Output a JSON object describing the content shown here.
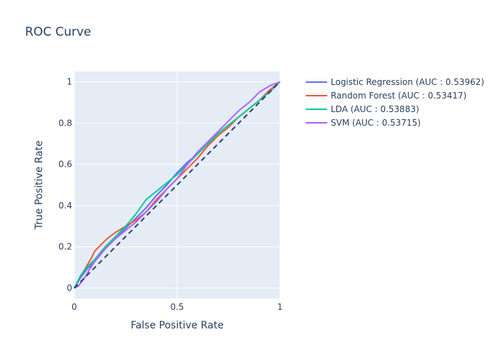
{
  "chart_data": {
    "type": "line",
    "title": "ROC Curve",
    "xlabel": "False Positive Rate",
    "ylabel": "True Positive Rate",
    "xlim": [
      0,
      1
    ],
    "ylim": [
      -0.05,
      1.05
    ],
    "x_ticks": [
      0,
      0.5,
      1
    ],
    "x_tick_labels": [
      "0",
      "0.5",
      "1"
    ],
    "y_ticks": [
      0,
      0.2,
      0.4,
      0.6,
      0.8,
      1
    ],
    "y_tick_labels": [
      "0",
      "0.2",
      "0.4",
      "0.6",
      "0.8",
      "1"
    ],
    "grid": true,
    "legend_position": "right",
    "background_color": "#e5ecf6",
    "series": [
      {
        "name": "Logistic Regression (AUC : 0.53962)",
        "color": "#636efa",
        "x": [
          0,
          0.03,
          0.06,
          0.1,
          0.15,
          0.2,
          0.25,
          0.3,
          0.35,
          0.4,
          0.45,
          0.5,
          0.55,
          0.6,
          0.65,
          0.7,
          0.75,
          0.8,
          0.85,
          0.9,
          0.95,
          1
        ],
        "y": [
          0,
          0.05,
          0.09,
          0.13,
          0.19,
          0.24,
          0.29,
          0.34,
          0.39,
          0.45,
          0.5,
          0.56,
          0.61,
          0.65,
          0.7,
          0.75,
          0.79,
          0.83,
          0.87,
          0.91,
          0.96,
          1
        ]
      },
      {
        "name": "Random Forest (AUC : 0.53417)",
        "color": "#ef553b",
        "x": [
          0,
          0.02,
          0.05,
          0.08,
          0.1,
          0.13,
          0.16,
          0.2,
          0.25,
          0.3,
          0.35,
          0.4,
          0.45,
          0.5,
          0.55,
          0.6,
          0.65,
          0.7,
          0.75,
          0.8,
          0.85,
          0.9,
          0.95,
          1
        ],
        "y": [
          0,
          0.04,
          0.09,
          0.14,
          0.18,
          0.21,
          0.24,
          0.27,
          0.3,
          0.33,
          0.37,
          0.43,
          0.48,
          0.53,
          0.58,
          0.63,
          0.69,
          0.74,
          0.78,
          0.83,
          0.87,
          0.91,
          0.96,
          1
        ]
      },
      {
        "name": "LDA (AUC : 0.53883)",
        "color": "#00cc96",
        "x": [
          0,
          0.03,
          0.06,
          0.1,
          0.15,
          0.2,
          0.25,
          0.3,
          0.35,
          0.4,
          0.45,
          0.5,
          0.55,
          0.6,
          0.65,
          0.7,
          0.75,
          0.8,
          0.85,
          0.9,
          0.95,
          1
        ],
        "y": [
          0,
          0.06,
          0.1,
          0.14,
          0.2,
          0.25,
          0.3,
          0.36,
          0.43,
          0.47,
          0.51,
          0.55,
          0.6,
          0.65,
          0.7,
          0.75,
          0.79,
          0.83,
          0.87,
          0.91,
          0.95,
          1
        ]
      },
      {
        "name": "SVM (AUC : 0.53715)",
        "color": "#ab63fa",
        "x": [
          0,
          0.02,
          0.05,
          0.08,
          0.12,
          0.16,
          0.2,
          0.25,
          0.3,
          0.35,
          0.4,
          0.45,
          0.5,
          0.55,
          0.6,
          0.65,
          0.7,
          0.75,
          0.8,
          0.85,
          0.9,
          0.95,
          1
        ],
        "y": [
          0,
          0.01,
          0.05,
          0.1,
          0.16,
          0.2,
          0.24,
          0.28,
          0.32,
          0.37,
          0.42,
          0.48,
          0.53,
          0.6,
          0.66,
          0.71,
          0.76,
          0.81,
          0.86,
          0.9,
          0.95,
          0.98,
          1
        ]
      }
    ],
    "reference_line": {
      "x": [
        0,
        1
      ],
      "y": [
        0,
        1
      ],
      "color": "#2a3f5f",
      "dash": "dash"
    }
  }
}
